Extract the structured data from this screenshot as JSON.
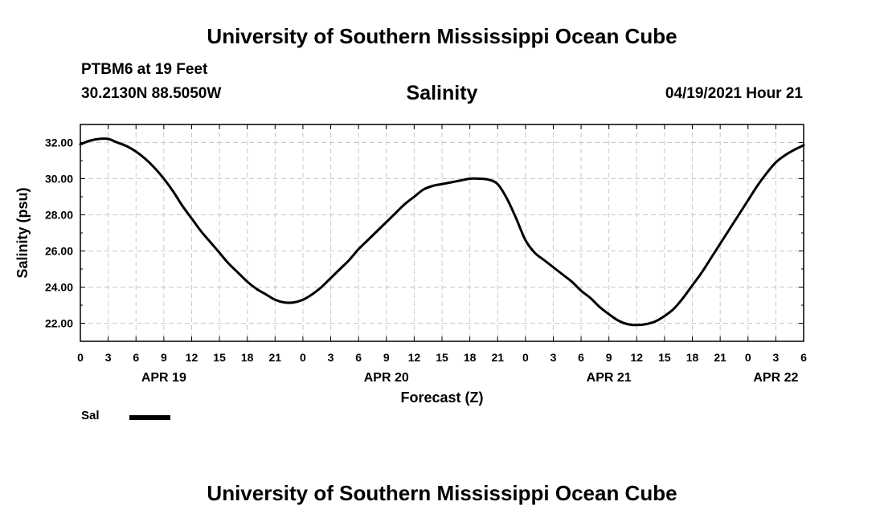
{
  "header": {
    "title": "University of Southern Mississippi Ocean Cube",
    "station": "PTBM6 at 19 Feet",
    "coordinates": "30.2130N  88.5050W",
    "datetime": "04/19/2021 Hour 21"
  },
  "footer": {
    "title": "University of Southern Mississippi Ocean Cube"
  },
  "chart_data": {
    "type": "line",
    "title": "Salinity",
    "xlabel": "Forecast (Z)",
    "ylabel": "Salinity (psu)",
    "xlim": [
      0,
      78
    ],
    "ylim": [
      21,
      33
    ],
    "x_unit": "hours from 00Z APR 19",
    "grid": true,
    "x_tick_labels": [
      "0",
      "3",
      "6",
      "9",
      "12",
      "15",
      "18",
      "21",
      "0",
      "3",
      "6",
      "9",
      "12",
      "15",
      "18",
      "21",
      "0",
      "3",
      "6",
      "9",
      "12",
      "15",
      "18",
      "21",
      "0",
      "3",
      "6"
    ],
    "y_ticks": [
      "22.00",
      "24.00",
      "26.00",
      "28.00",
      "30.00",
      "32.00"
    ],
    "date_labels": [
      {
        "hour": 9,
        "label": "APR 19"
      },
      {
        "hour": 33,
        "label": "APR 20"
      },
      {
        "hour": 57,
        "label": "APR 21"
      },
      {
        "hour": 75,
        "label": "APR 22"
      }
    ],
    "legend": {
      "position": "bottom-left",
      "entries": [
        {
          "name": "Sal",
          "color": "#000000"
        }
      ]
    },
    "series": [
      {
        "name": "Sal",
        "color": "#000000",
        "x": [
          0,
          1,
          2,
          3,
          4,
          5,
          6,
          7,
          8,
          9,
          10,
          11,
          12,
          13,
          14,
          15,
          16,
          17,
          18,
          19,
          20,
          21,
          22,
          23,
          24,
          25,
          26,
          27,
          28,
          29,
          30,
          31,
          32,
          33,
          34,
          35,
          36,
          37,
          38,
          39,
          40,
          41,
          42,
          43,
          44,
          45,
          46,
          47,
          48,
          49,
          50,
          51,
          52,
          53,
          54,
          55,
          56,
          57,
          58,
          59,
          60,
          61,
          62,
          63,
          64,
          65,
          66,
          67,
          68,
          69,
          70,
          71,
          72,
          73,
          74,
          75,
          76,
          77,
          78
        ],
        "values": [
          31.9,
          32.1,
          32.2,
          32.2,
          32.0,
          31.8,
          31.5,
          31.1,
          30.6,
          30.0,
          29.3,
          28.5,
          27.8,
          27.1,
          26.5,
          25.9,
          25.3,
          24.8,
          24.3,
          23.9,
          23.6,
          23.3,
          23.15,
          23.15,
          23.3,
          23.6,
          24.0,
          24.5,
          25.0,
          25.5,
          26.1,
          26.6,
          27.1,
          27.6,
          28.1,
          28.6,
          29.0,
          29.4,
          29.6,
          29.7,
          29.8,
          29.9,
          30.0,
          30.0,
          29.95,
          29.7,
          28.9,
          27.8,
          26.6,
          25.9,
          25.5,
          25.1,
          24.7,
          24.3,
          23.8,
          23.4,
          22.9,
          22.5,
          22.15,
          21.95,
          21.9,
          21.95,
          22.1,
          22.4,
          22.8,
          23.4,
          24.1,
          24.8,
          25.6,
          26.4,
          27.2,
          28.0,
          28.8,
          29.6,
          30.3,
          30.9,
          31.3,
          31.6,
          31.85
        ]
      }
    ]
  }
}
